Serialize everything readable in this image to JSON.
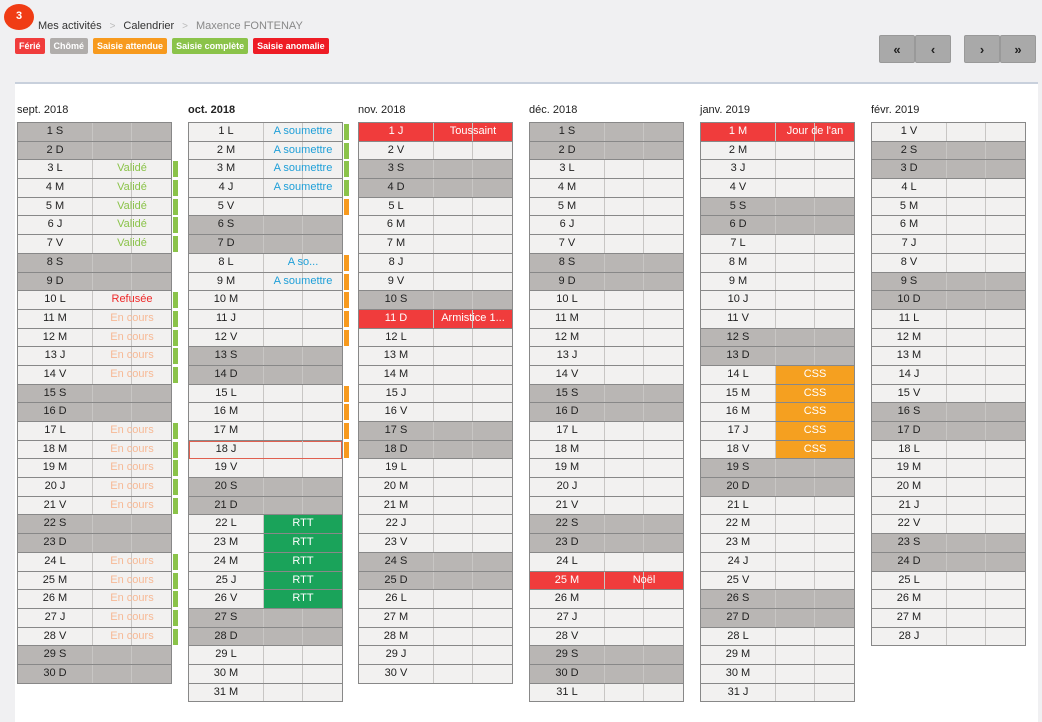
{
  "badge": "3",
  "breadcrumb": [
    "Mes activités",
    "Calendrier",
    "Maxence FONTENAY"
  ],
  "legend": [
    {
      "label": "Férié",
      "color": "#f03c3c"
    },
    {
      "label": "Chômé",
      "color": "#b0adab"
    },
    {
      "label": "Saisie attendue",
      "color": "#f79a1e"
    },
    {
      "label": "Saisie complète",
      "color": "#8bc34a"
    },
    {
      "label": "Saisie anomalie",
      "color": "#ee1c25"
    }
  ],
  "nav": {
    "first": "«",
    "prev": "‹",
    "next": "›",
    "last": "»"
  },
  "colors": {
    "valide": "#8bc34a",
    "refusee": "#ee2a2a",
    "en_cours": "#f7b995",
    "a_soumettre": "#1e9fd8",
    "rtt": "#1aa35a",
    "css": "#f5a020",
    "marker_green": "#8bc34a",
    "marker_orange": "#f79a1e"
  },
  "months": [
    {
      "title": "sept. 2018",
      "bold": false,
      "days": [
        {
          "d": "1 S",
          "w": 1
        },
        {
          "d": "2 D",
          "w": 1
        },
        {
          "d": "3 L",
          "s": "Validé",
          "t": "valide",
          "m": "g"
        },
        {
          "d": "4 M",
          "s": "Validé",
          "t": "valide",
          "m": "g"
        },
        {
          "d": "5 M",
          "s": "Validé",
          "t": "valide",
          "m": "g"
        },
        {
          "d": "6 J",
          "s": "Validé",
          "t": "valide",
          "m": "g"
        },
        {
          "d": "7 V",
          "s": "Validé",
          "t": "valide",
          "m": "g"
        },
        {
          "d": "8 S",
          "w": 1
        },
        {
          "d": "9 D",
          "w": 1
        },
        {
          "d": "10 L",
          "s": "Refusée",
          "t": "refusee",
          "m": "g"
        },
        {
          "d": "11 M",
          "s": "En cours",
          "t": "en_cours",
          "m": "g"
        },
        {
          "d": "12 M",
          "s": "En cours",
          "t": "en_cours",
          "m": "g"
        },
        {
          "d": "13 J",
          "s": "En cours",
          "t": "en_cours",
          "m": "g"
        },
        {
          "d": "14 V",
          "s": "En cours",
          "t": "en_cours",
          "m": "g"
        },
        {
          "d": "15 S",
          "w": 1
        },
        {
          "d": "16 D",
          "w": 1
        },
        {
          "d": "17 L",
          "s": "En cours",
          "t": "en_cours",
          "m": "g"
        },
        {
          "d": "18 M",
          "s": "En cours",
          "t": "en_cours",
          "m": "g"
        },
        {
          "d": "19 M",
          "s": "En cours",
          "t": "en_cours",
          "m": "g"
        },
        {
          "d": "20 J",
          "s": "En cours",
          "t": "en_cours",
          "m": "g"
        },
        {
          "d": "21 V",
          "s": "En cours",
          "t": "en_cours",
          "m": "g"
        },
        {
          "d": "22 S",
          "w": 1
        },
        {
          "d": "23 D",
          "w": 1
        },
        {
          "d": "24 L",
          "s": "En cours",
          "t": "en_cours",
          "m": "g"
        },
        {
          "d": "25 M",
          "s": "En cours",
          "t": "en_cours",
          "m": "g"
        },
        {
          "d": "26 M",
          "s": "En cours",
          "t": "en_cours",
          "m": "g"
        },
        {
          "d": "27 J",
          "s": "En cours",
          "t": "en_cours",
          "m": "g"
        },
        {
          "d": "28 V",
          "s": "En cours",
          "t": "en_cours",
          "m": "g"
        },
        {
          "d": "29 S",
          "w": 1
        },
        {
          "d": "30 D",
          "w": 1
        }
      ]
    },
    {
      "title": "oct. 2018",
      "bold": true,
      "days": [
        {
          "d": "1 L",
          "s": "A soumettre",
          "t": "a_soumettre",
          "m": "g"
        },
        {
          "d": "2 M",
          "s": "A soumettre",
          "t": "a_soumettre",
          "m": "g"
        },
        {
          "d": "3 M",
          "s": "A soumettre",
          "t": "a_soumettre",
          "m": "g"
        },
        {
          "d": "4 J",
          "s": "A soumettre",
          "t": "a_soumettre",
          "m": "g"
        },
        {
          "d": "5 V",
          "m": "o"
        },
        {
          "d": "6 S",
          "w": 1
        },
        {
          "d": "7 D",
          "w": 1
        },
        {
          "d": "8 L",
          "s": "A so...",
          "t": "a_soumettre",
          "m": "o"
        },
        {
          "d": "9 M",
          "s": "A soumettre",
          "t": "a_soumettre",
          "m": "o"
        },
        {
          "d": "10 M",
          "m": "o"
        },
        {
          "d": "11 J",
          "m": "o"
        },
        {
          "d": "12 V",
          "m": "o"
        },
        {
          "d": "13 S",
          "w": 1
        },
        {
          "d": "14 D",
          "w": 1
        },
        {
          "d": "15 L",
          "m": "o"
        },
        {
          "d": "16 M",
          "m": "o"
        },
        {
          "d": "17 M",
          "m": "o"
        },
        {
          "d": "18 J",
          "today": 1,
          "m": "o"
        },
        {
          "d": "19 V"
        },
        {
          "d": "20 S",
          "w": 1
        },
        {
          "d": "21 D",
          "w": 1
        },
        {
          "d": "22 L",
          "s": "RTT",
          "t": "rtt",
          "bg": 1
        },
        {
          "d": "23 M",
          "s": "RTT",
          "t": "rtt",
          "bg": 1
        },
        {
          "d": "24 M",
          "s": "RTT",
          "t": "rtt",
          "bg": 1
        },
        {
          "d": "25 J",
          "s": "RTT",
          "t": "rtt",
          "bg": 1
        },
        {
          "d": "26 V",
          "s": "RTT",
          "t": "rtt",
          "bg": 1
        },
        {
          "d": "27 S",
          "w": 1
        },
        {
          "d": "28 D",
          "w": 1
        },
        {
          "d": "29 L"
        },
        {
          "d": "30 M"
        },
        {
          "d": "31 M"
        }
      ]
    },
    {
      "title": "nov. 2018",
      "bold": false,
      "days": [
        {
          "d": "1 J",
          "f": "Toussaint"
        },
        {
          "d": "2 V"
        },
        {
          "d": "3 S",
          "w": 1
        },
        {
          "d": "4 D",
          "w": 1
        },
        {
          "d": "5 L"
        },
        {
          "d": "6 M"
        },
        {
          "d": "7 M"
        },
        {
          "d": "8 J"
        },
        {
          "d": "9 V"
        },
        {
          "d": "10 S",
          "w": 1
        },
        {
          "d": "11 D",
          "f": "Armistice 1..."
        },
        {
          "d": "12 L"
        },
        {
          "d": "13 M"
        },
        {
          "d": "14 M"
        },
        {
          "d": "15 J"
        },
        {
          "d": "16 V"
        },
        {
          "d": "17 S",
          "w": 1
        },
        {
          "d": "18 D",
          "w": 1
        },
        {
          "d": "19 L"
        },
        {
          "d": "20 M"
        },
        {
          "d": "21 M"
        },
        {
          "d": "22 J"
        },
        {
          "d": "23 V"
        },
        {
          "d": "24 S",
          "w": 1
        },
        {
          "d": "25 D",
          "w": 1
        },
        {
          "d": "26 L"
        },
        {
          "d": "27 M"
        },
        {
          "d": "28 M"
        },
        {
          "d": "29 J"
        },
        {
          "d": "30 V"
        }
      ]
    },
    {
      "title": "déc. 2018",
      "bold": false,
      "days": [
        {
          "d": "1 S",
          "w": 1
        },
        {
          "d": "2 D",
          "w": 1
        },
        {
          "d": "3 L"
        },
        {
          "d": "4 M"
        },
        {
          "d": "5 M"
        },
        {
          "d": "6 J"
        },
        {
          "d": "7 V"
        },
        {
          "d": "8 S",
          "w": 1
        },
        {
          "d": "9 D",
          "w": 1
        },
        {
          "d": "10 L"
        },
        {
          "d": "11 M"
        },
        {
          "d": "12 M"
        },
        {
          "d": "13 J"
        },
        {
          "d": "14 V"
        },
        {
          "d": "15 S",
          "w": 1
        },
        {
          "d": "16 D",
          "w": 1
        },
        {
          "d": "17 L"
        },
        {
          "d": "18 M"
        },
        {
          "d": "19 M"
        },
        {
          "d": "20 J"
        },
        {
          "d": "21 V"
        },
        {
          "d": "22 S",
          "w": 1
        },
        {
          "d": "23 D",
          "w": 1
        },
        {
          "d": "24 L"
        },
        {
          "d": "25 M",
          "f": "Noël"
        },
        {
          "d": "26 M"
        },
        {
          "d": "27 J"
        },
        {
          "d": "28 V"
        },
        {
          "d": "29 S",
          "w": 1
        },
        {
          "d": "30 D",
          "w": 1
        },
        {
          "d": "31 L"
        }
      ]
    },
    {
      "title": "janv. 2019",
      "bold": false,
      "days": [
        {
          "d": "1 M",
          "f": "Jour de l'an"
        },
        {
          "d": "2 M"
        },
        {
          "d": "3 J"
        },
        {
          "d": "4 V"
        },
        {
          "d": "5 S",
          "w": 1
        },
        {
          "d": "6 D",
          "w": 1
        },
        {
          "d": "7 L"
        },
        {
          "d": "8 M"
        },
        {
          "d": "9 M"
        },
        {
          "d": "10 J"
        },
        {
          "d": "11 V"
        },
        {
          "d": "12 S",
          "w": 1
        },
        {
          "d": "13 D",
          "w": 1
        },
        {
          "d": "14 L",
          "s": "CSS",
          "t": "css",
          "bg": 1
        },
        {
          "d": "15 M",
          "s": "CSS",
          "t": "css",
          "bg": 1
        },
        {
          "d": "16 M",
          "s": "CSS",
          "t": "css",
          "bg": 1
        },
        {
          "d": "17 J",
          "s": "CSS",
          "t": "css",
          "bg": 1
        },
        {
          "d": "18 V",
          "s": "CSS",
          "t": "css",
          "bg": 1
        },
        {
          "d": "19 S",
          "w": 1
        },
        {
          "d": "20 D",
          "w": 1
        },
        {
          "d": "21 L"
        },
        {
          "d": "22 M"
        },
        {
          "d": "23 M"
        },
        {
          "d": "24 J"
        },
        {
          "d": "25 V"
        },
        {
          "d": "26 S",
          "w": 1
        },
        {
          "d": "27 D",
          "w": 1
        },
        {
          "d": "28 L"
        },
        {
          "d": "29 M"
        },
        {
          "d": "30 M"
        },
        {
          "d": "31 J"
        }
      ]
    },
    {
      "title": "févr. 2019",
      "bold": false,
      "days": [
        {
          "d": "1 V"
        },
        {
          "d": "2 S",
          "w": 1
        },
        {
          "d": "3 D",
          "w": 1
        },
        {
          "d": "4 L"
        },
        {
          "d": "5 M"
        },
        {
          "d": "6 M"
        },
        {
          "d": "7 J"
        },
        {
          "d": "8 V"
        },
        {
          "d": "9 S",
          "w": 1
        },
        {
          "d": "10 D",
          "w": 1
        },
        {
          "d": "11 L"
        },
        {
          "d": "12 M"
        },
        {
          "d": "13 M"
        },
        {
          "d": "14 J"
        },
        {
          "d": "15 V"
        },
        {
          "d": "16 S",
          "w": 1
        },
        {
          "d": "17 D",
          "w": 1
        },
        {
          "d": "18 L"
        },
        {
          "d": "19 M"
        },
        {
          "d": "20 M"
        },
        {
          "d": "21 J"
        },
        {
          "d": "22 V"
        },
        {
          "d": "23 S",
          "w": 1
        },
        {
          "d": "24 D",
          "w": 1
        },
        {
          "d": "25 L"
        },
        {
          "d": "26 M"
        },
        {
          "d": "27 M"
        },
        {
          "d": "28 J"
        }
      ]
    }
  ]
}
